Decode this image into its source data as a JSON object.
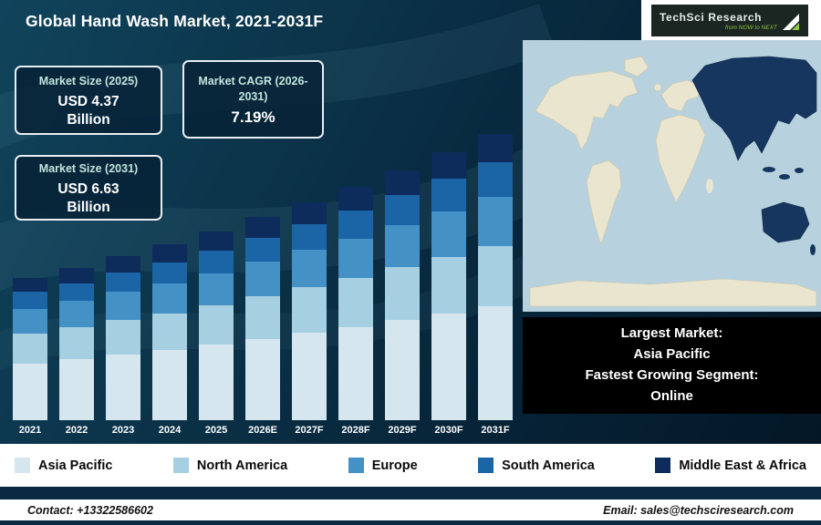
{
  "header": {
    "title": "Global Hand Wash Market, 2021-2031F",
    "logo": {
      "brand": "TechSci Research",
      "tagline": "from NOW to NEXT"
    }
  },
  "info_boxes": [
    {
      "title": "Market Size (2025)",
      "line1": "USD 4.37",
      "line2": "Billion"
    },
    {
      "title": "Market CAGR (2026-2031)",
      "line1": "7.19%",
      "line2": ""
    },
    {
      "title": "Market Size (2031)",
      "line1": "USD 6.63",
      "line2": "Billion"
    }
  ],
  "chart_data": {
    "type": "bar",
    "stacked": true,
    "title": "Global Hand Wash Market, 2021-2031F",
    "unit": "USD Billion",
    "categories": [
      "2021",
      "2022",
      "2023",
      "2024",
      "2025",
      "2026E",
      "2027F",
      "2028F",
      "2029F",
      "2030F",
      "2031F"
    ],
    "series": [
      {
        "name": "Asia Pacific",
        "color": "#d6e6ee",
        "values": [
          1.32,
          1.42,
          1.52,
          1.63,
          1.75,
          1.88,
          2.02,
          2.16,
          2.32,
          2.48,
          2.65
        ]
      },
      {
        "name": "North America",
        "color": "#a6cfe2",
        "values": [
          0.69,
          0.74,
          0.8,
          0.85,
          0.92,
          0.99,
          1.06,
          1.13,
          1.22,
          1.3,
          1.39
        ]
      },
      {
        "name": "Europe",
        "color": "#4491c6",
        "values": [
          0.56,
          0.6,
          0.65,
          0.69,
          0.74,
          0.8,
          0.86,
          0.92,
          0.98,
          1.06,
          1.13
        ]
      },
      {
        "name": "South America",
        "color": "#1b64a6",
        "values": [
          0.4,
          0.42,
          0.46,
          0.49,
          0.52,
          0.56,
          0.6,
          0.65,
          0.69,
          0.75,
          0.8
        ]
      },
      {
        "name": "Middle East & Africa",
        "color": "#0d2c5c",
        "values": [
          0.33,
          0.36,
          0.37,
          0.41,
          0.44,
          0.47,
          0.5,
          0.54,
          0.58,
          0.62,
          0.66
        ]
      }
    ],
    "totals": [
      3.3,
      3.54,
      3.8,
      4.07,
      4.37,
      4.7,
      5.04,
      5.4,
      5.79,
      6.21,
      6.63
    ],
    "ylim": [
      0,
      6.8
    ],
    "grid": false,
    "legend_position": "bottom"
  },
  "map_callout": {
    "line1": "Largest Market:",
    "line2": "Asia Pacific",
    "line3": "Fastest Growing Segment:",
    "line4": "Online"
  },
  "footer": {
    "contact": "Contact: +13322586602",
    "email": "Email: sales@techsciresearch.com"
  }
}
